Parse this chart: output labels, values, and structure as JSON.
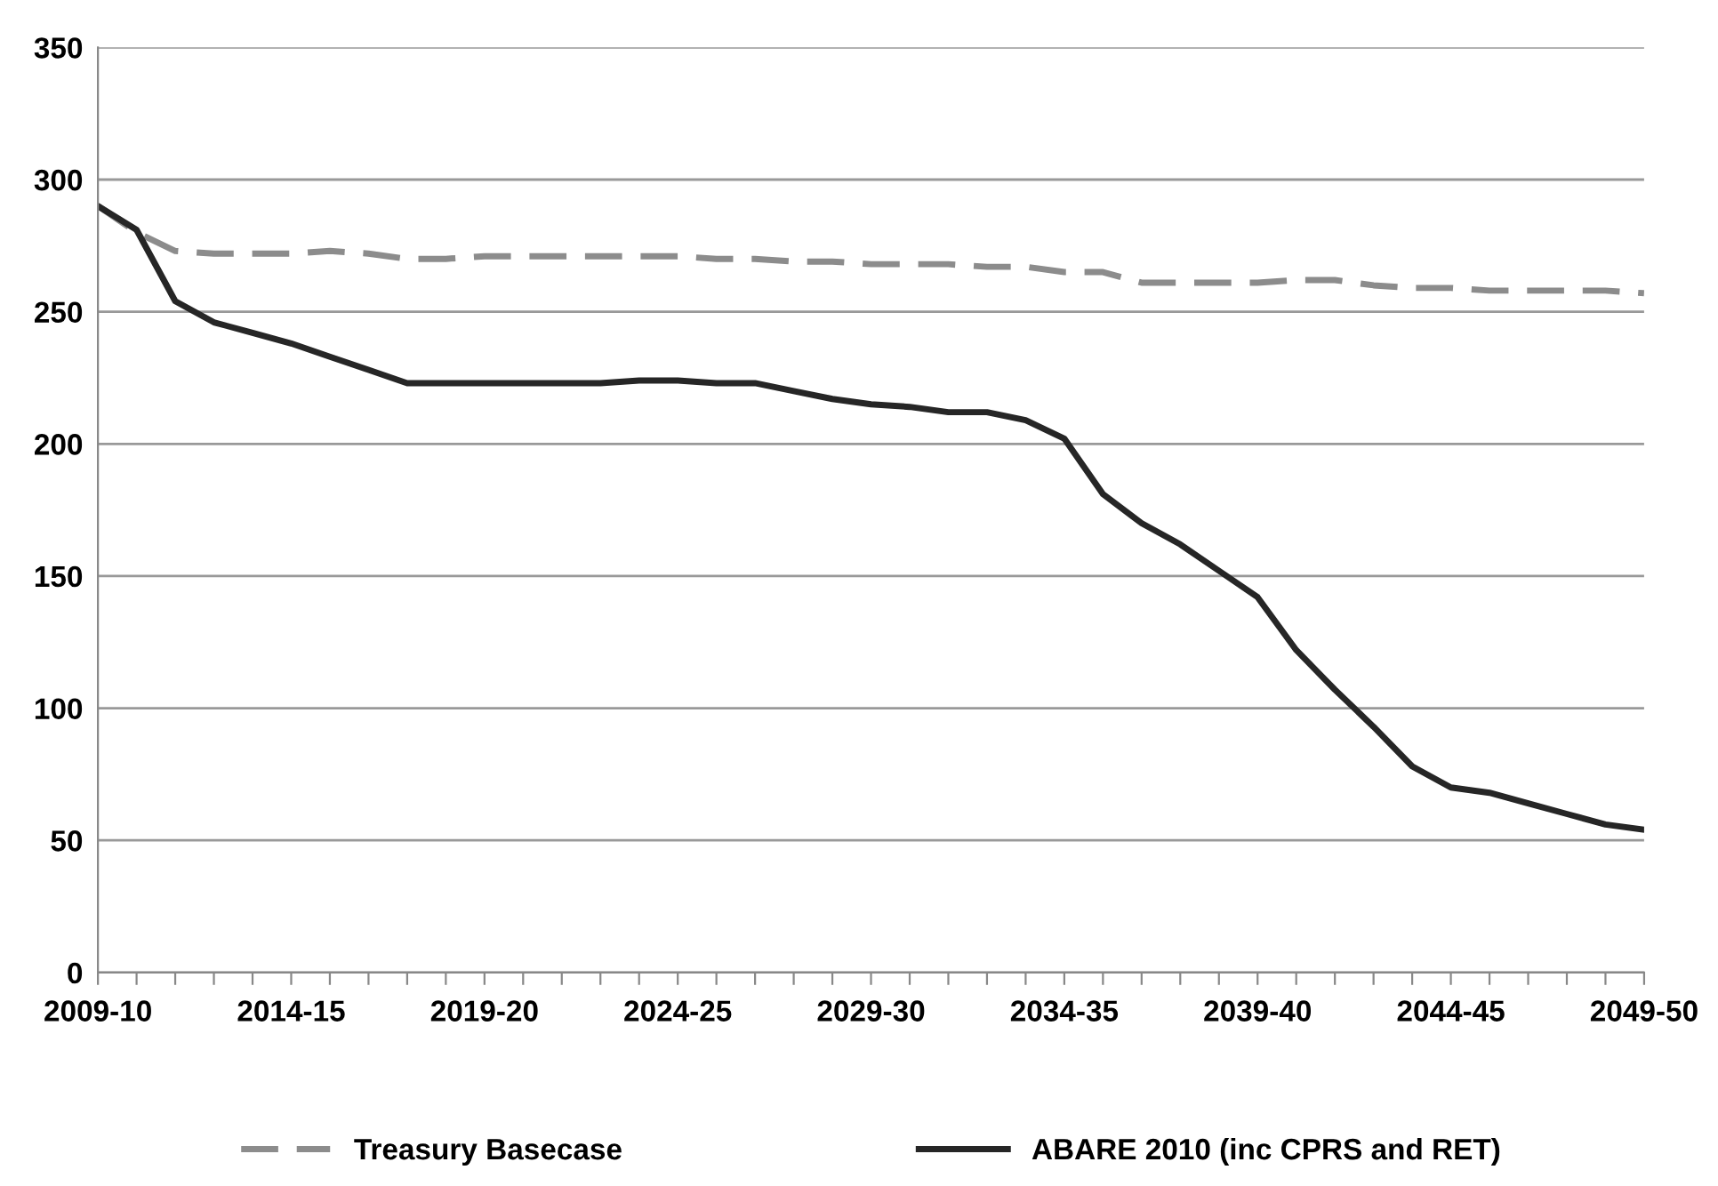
{
  "chart_data": {
    "type": "line",
    "categories": [
      "2009-10",
      null,
      null,
      null,
      null,
      "2014-15",
      null,
      null,
      null,
      null,
      "2019-20",
      null,
      null,
      null,
      null,
      "2024-25",
      null,
      null,
      null,
      null,
      "2029-30",
      null,
      null,
      null,
      null,
      "2034-35",
      null,
      null,
      null,
      null,
      "2039-40",
      null,
      null,
      null,
      null,
      "2044-45",
      null,
      null,
      null,
      null,
      "2049-50"
    ],
    "series": [
      {
        "name": "Treasury Basecase",
        "color": "#8c8c8c",
        "line_style": "dashed",
        "values": [
          290,
          280,
          273,
          272,
          272,
          272,
          273,
          272,
          270,
          270,
          271,
          271,
          271,
          271,
          271,
          271,
          270,
          270,
          269,
          269,
          268,
          268,
          268,
          267,
          267,
          265,
          265,
          261,
          261,
          261,
          261,
          262,
          262,
          260,
          259,
          259,
          258,
          258,
          258,
          258,
          257
        ]
      },
      {
        "name": "ABARE 2010 (inc CPRS and RET)",
        "color": "#262626",
        "line_style": "solid",
        "values": [
          290,
          281,
          254,
          246,
          242,
          238,
          233,
          228,
          223,
          223,
          223,
          223,
          223,
          223,
          224,
          224,
          223,
          223,
          220,
          217,
          215,
          214,
          212,
          212,
          209,
          202,
          181,
          170,
          162,
          152,
          142,
          122,
          107,
          93,
          78,
          70,
          68,
          64,
          60,
          56,
          54
        ]
      }
    ],
    "ylim": [
      0,
      350
    ],
    "yticks": [
      0,
      50,
      100,
      150,
      200,
      250,
      300,
      350
    ],
    "grid": "y",
    "legend": "bottom",
    "marker": "none"
  }
}
